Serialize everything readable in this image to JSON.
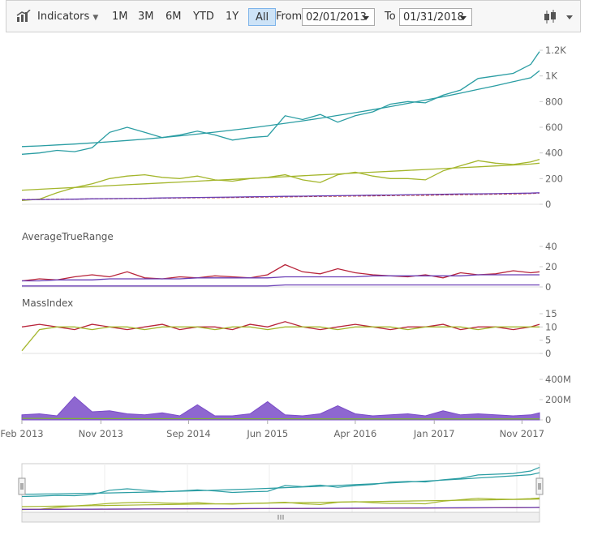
{
  "toolbar": {
    "indicators": "Indicators",
    "ranges": [
      "1M",
      "3M",
      "6M",
      "YTD",
      "1Y",
      "All"
    ],
    "selected": "All",
    "from_label": "From",
    "from": "02/01/2013",
    "to_label": "To",
    "to": "01/31/2018"
  },
  "chart_data": [
    {
      "type": "line",
      "x": [
        "2013-02",
        "2013-04",
        "2013-06",
        "2013-08",
        "2013-10",
        "2013-12",
        "2014-02",
        "2014-04",
        "2014-06",
        "2014-08",
        "2014-10",
        "2014-12",
        "2015-02",
        "2015-04",
        "2015-06",
        "2015-08",
        "2015-10",
        "2015-12",
        "2016-02",
        "2016-04",
        "2016-06",
        "2016-08",
        "2016-10",
        "2016-12",
        "2017-02",
        "2017-04",
        "2017-06",
        "2017-08",
        "2017-10",
        "2017-12",
        "2018-01"
      ],
      "xlim": [
        "2013-02",
        "2018-01"
      ],
      "ylim": [
        0,
        1200
      ],
      "yticks": [
        0,
        200,
        400,
        600,
        800,
        {
          "value": 1000,
          "label": "1K"
        },
        {
          "value": 1200,
          "label": "1.2K"
        }
      ],
      "series": [
        {
          "color": "#2a9da3",
          "values": [
            390,
            400,
            420,
            410,
            440,
            560,
            600,
            560,
            520,
            540,
            570,
            540,
            500,
            520,
            530,
            690,
            660,
            700,
            640,
            690,
            720,
            780,
            800,
            790,
            850,
            890,
            980,
            1000,
            1020,
            1090,
            1190
          ]
        },
        {
          "color": "#2a9da3",
          "values": [
            450,
            455,
            462,
            469,
            478,
            487,
            497,
            508,
            520,
            533,
            547,
            562,
            578,
            594,
            612,
            631,
            650,
            670,
            692,
            714,
            737,
            761,
            786,
            812,
            838,
            866,
            895,
            924,
            955,
            986,
            1040
          ]
        },
        {
          "color": "#a4b62c",
          "values": [
            30,
            40,
            90,
            130,
            160,
            200,
            220,
            230,
            210,
            200,
            220,
            190,
            180,
            200,
            210,
            230,
            190,
            170,
            230,
            250,
            220,
            200,
            200,
            190,
            260,
            300,
            340,
            320,
            310,
            330,
            350
          ]
        },
        {
          "color": "#a4b62c",
          "values": [
            110,
            117,
            124,
            131,
            138,
            145,
            152,
            159,
            166,
            173,
            180,
            187,
            194,
            201,
            208,
            215,
            222,
            229,
            236,
            243,
            250,
            257,
            264,
            271,
            278,
            285,
            292,
            299,
            306,
            313,
            320
          ]
        },
        {
          "color": "#c0392b",
          "dashed": true,
          "values": [
            36,
            37,
            39,
            40,
            42,
            43,
            45,
            46,
            48,
            49,
            51,
            52,
            53,
            55,
            57,
            58,
            60,
            62,
            63,
            65,
            66,
            68,
            70,
            71,
            73,
            75,
            77,
            79,
            81,
            84,
            88
          ]
        },
        {
          "color": "#6a3fb5",
          "values": [
            35,
            37,
            38,
            40,
            42,
            44,
            45,
            47,
            49,
            51,
            53,
            54,
            56,
            58,
            60,
            62,
            63,
            65,
            67,
            69,
            71,
            72,
            74,
            76,
            78,
            80,
            81,
            83,
            85,
            87,
            90
          ]
        }
      ]
    },
    {
      "type": "line",
      "title": "AverageTrueRange",
      "x": [
        "2013-02",
        "2013-04",
        "2013-06",
        "2013-08",
        "2013-10",
        "2013-12",
        "2014-02",
        "2014-04",
        "2014-06",
        "2014-08",
        "2014-10",
        "2014-12",
        "2015-02",
        "2015-04",
        "2015-06",
        "2015-08",
        "2015-10",
        "2015-12",
        "2016-02",
        "2016-04",
        "2016-06",
        "2016-08",
        "2016-10",
        "2016-12",
        "2017-02",
        "2017-04",
        "2017-06",
        "2017-08",
        "2017-10",
        "2017-12",
        "2018-01"
      ],
      "xlim": [
        "2013-02",
        "2018-01"
      ],
      "ylim": [
        0,
        40
      ],
      "yticks": [
        0,
        20,
        40
      ],
      "series": [
        {
          "color": "#b8243a",
          "values": [
            6,
            8,
            7,
            10,
            12,
            10,
            15,
            9,
            8,
            10,
            9,
            11,
            10,
            9,
            12,
            22,
            15,
            13,
            18,
            14,
            12,
            11,
            10,
            12,
            9,
            14,
            12,
            13,
            16,
            14,
            15
          ]
        },
        {
          "color": "#6a3fb5",
          "values": [
            6,
            6,
            7,
            7,
            7,
            8,
            8,
            8,
            8,
            8,
            9,
            9,
            9,
            9,
            9,
            10,
            10,
            10,
            10,
            10,
            11,
            11,
            11,
            11,
            11,
            11,
            12,
            12,
            12,
            12,
            12
          ]
        },
        {
          "color": "#6a3fb5",
          "values": [
            1,
            1,
            1,
            1,
            1,
            1,
            1,
            1,
            1,
            1,
            1,
            1,
            1,
            1,
            1,
            2,
            2,
            2,
            2,
            2,
            2,
            2,
            2,
            2,
            2,
            2,
            2,
            2,
            2,
            2,
            2
          ]
        }
      ]
    },
    {
      "type": "line",
      "title": "MassIndex",
      "x": [
        "2013-02",
        "2013-04",
        "2013-06",
        "2013-08",
        "2013-10",
        "2013-12",
        "2014-02",
        "2014-04",
        "2014-06",
        "2014-08",
        "2014-10",
        "2014-12",
        "2015-02",
        "2015-04",
        "2015-06",
        "2015-08",
        "2015-10",
        "2015-12",
        "2016-02",
        "2016-04",
        "2016-06",
        "2016-08",
        "2016-10",
        "2016-12",
        "2017-02",
        "2017-04",
        "2017-06",
        "2017-08",
        "2017-10",
        "2017-12",
        "2018-01"
      ],
      "xlim": [
        "2013-02",
        "2018-01"
      ],
      "ylim": [
        0,
        15
      ],
      "yticks": [
        0,
        5,
        10,
        15
      ],
      "series": [
        {
          "color": "#b8243a",
          "values": [
            10,
            11,
            10,
            9,
            11,
            10,
            9,
            10,
            11,
            9,
            10,
            10,
            9,
            11,
            10,
            12,
            10,
            9,
            10,
            11,
            10,
            9,
            10,
            10,
            11,
            9,
            10,
            10,
            9,
            10,
            11
          ]
        },
        {
          "color": "#a4b62c",
          "values": [
            1,
            9,
            10,
            10,
            9,
            10,
            10,
            9,
            10,
            10,
            10,
            9,
            10,
            10,
            9,
            10,
            10,
            10,
            9,
            10,
            10,
            10,
            9,
            10,
            10,
            10,
            9,
            10,
            10,
            10,
            10
          ]
        }
      ]
    },
    {
      "type": "area",
      "x": [
        "2013-02",
        "2013-04",
        "2013-06",
        "2013-08",
        "2013-10",
        "2013-12",
        "2014-02",
        "2014-04",
        "2014-06",
        "2014-08",
        "2014-10",
        "2014-12",
        "2015-02",
        "2015-04",
        "2015-06",
        "2015-08",
        "2015-10",
        "2015-12",
        "2016-02",
        "2016-04",
        "2016-06",
        "2016-08",
        "2016-10",
        "2016-12",
        "2017-02",
        "2017-04",
        "2017-06",
        "2017-08",
        "2017-10",
        "2017-12",
        "2018-01"
      ],
      "xlim": [
        "2013-02",
        "2018-01"
      ],
      "xticks": [
        {
          "value": "2013-02",
          "label": "Feb 2013"
        },
        {
          "value": "2013-11",
          "label": "Nov 2013"
        },
        {
          "value": "2014-09",
          "label": "Sep 2014"
        },
        {
          "value": "2015-06",
          "label": "Jun 2015"
        },
        {
          "value": "2016-04",
          "label": "Apr 2016"
        },
        {
          "value": "2017-01",
          "label": "Jan 2017"
        },
        {
          "value": "2017-11",
          "label": "Nov 2017"
        }
      ],
      "ylim": [
        0,
        400000000
      ],
      "yticks": [
        0,
        {
          "value": 200000000,
          "label": "200M"
        },
        {
          "value": 400000000,
          "label": "400M"
        }
      ],
      "series": [
        {
          "color": "#7a4cc8",
          "values": [
            50000000,
            60000000,
            40000000,
            230000000,
            80000000,
            90000000,
            60000000,
            50000000,
            70000000,
            40000000,
            150000000,
            40000000,
            40000000,
            60000000,
            180000000,
            50000000,
            40000000,
            60000000,
            140000000,
            60000000,
            40000000,
            50000000,
            60000000,
            40000000,
            90000000,
            50000000,
            60000000,
            50000000,
            40000000,
            50000000,
            70000000
          ]
        },
        {
          "color": "#7fb13a",
          "line": true,
          "values": [
            15000000,
            15000000,
            14000000,
            14000000,
            13000000,
            13000000,
            13000000,
            12000000,
            12000000,
            12000000,
            12000000,
            12000000,
            11000000,
            11000000,
            11000000,
            11000000,
            11000000,
            10000000,
            10000000,
            10000000,
            10000000,
            10000000,
            10000000,
            10000000,
            10000000,
            10000000,
            10000000,
            10000000,
            10000000,
            10000000,
            10000000
          ]
        }
      ]
    }
  ]
}
